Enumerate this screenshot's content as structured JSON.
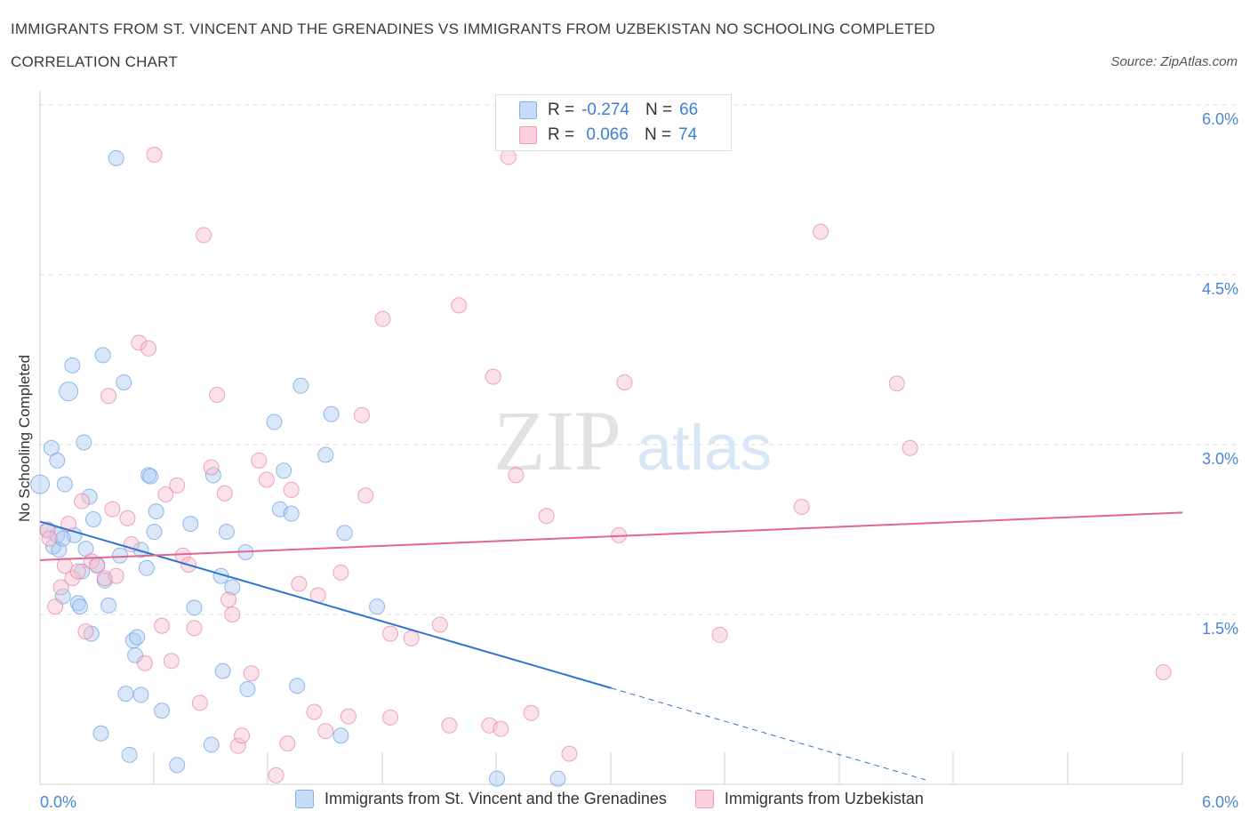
{
  "title": "IMMIGRANTS FROM ST. VINCENT AND THE GRENADINES VS IMMIGRANTS FROM UZBEKISTAN NO SCHOOLING COMPLETED",
  "subtitle": "CORRELATION CHART",
  "source": "Source: ZipAtlas.com",
  "watermark": {
    "zip": "ZIP",
    "atlas": "atlas"
  },
  "legend": {
    "rows": [
      {
        "r_label": "R =",
        "r_value": "-0.274",
        "n_label": "N =",
        "n_value": "66",
        "color": "#aac9f2"
      },
      {
        "r_label": "R =",
        "r_value": " 0.066",
        "n_label": "N =",
        "n_value": "74",
        "color": "#f7bfd0"
      }
    ]
  },
  "bottom_legend": [
    {
      "label": "Immigrants from St. Vincent and the Grenadines",
      "color": "#aac9f2"
    },
    {
      "label": "Immigrants from Uzbekistan",
      "color": "#f7bfd0"
    }
  ],
  "chart_data": {
    "type": "scatter",
    "title": "IMMIGRANTS FROM ST. VINCENT AND THE GRENADINES VS IMMIGRANTS FROM UZBEKISTAN NO SCHOOLING COMPLETED",
    "xlabel": "",
    "ylabel": "No Schooling Completed",
    "xlim": [
      0,
      6.0
    ],
    "ylim": [
      0,
      6.0
    ],
    "x_tick_labels": {
      "left": "0.0%",
      "right": "6.0%"
    },
    "y_ticks": [
      {
        "value": 1.5,
        "label": "1.5%"
      },
      {
        "value": 3.0,
        "label": "3.0%"
      },
      {
        "value": 4.5,
        "label": "4.5%"
      },
      {
        "value": 6.0,
        "label": "6.0%"
      }
    ],
    "grid": true,
    "series": [
      {
        "name": "Immigrants from St. Vincent and the Grenadines",
        "color": "#6fa3e6",
        "fill": "#aac9f2",
        "points": [
          [
            0.0,
            2.65
          ],
          [
            0.04,
            2.25
          ],
          [
            0.06,
            2.97
          ],
          [
            0.07,
            2.1
          ],
          [
            0.09,
            2.2
          ],
          [
            0.09,
            2.86
          ],
          [
            0.1,
            2.07
          ],
          [
            0.12,
            1.66
          ],
          [
            0.13,
            2.65
          ],
          [
            0.15,
            3.47
          ],
          [
            0.17,
            3.7
          ],
          [
            0.18,
            2.2
          ],
          [
            0.2,
            1.6
          ],
          [
            0.21,
            1.57
          ],
          [
            0.22,
            1.88
          ],
          [
            0.23,
            3.02
          ],
          [
            0.24,
            2.08
          ],
          [
            0.26,
            2.54
          ],
          [
            0.27,
            1.33
          ],
          [
            0.28,
            2.34
          ],
          [
            0.3,
            1.94
          ],
          [
            0.32,
            0.45
          ],
          [
            0.33,
            3.79
          ],
          [
            0.34,
            1.8
          ],
          [
            0.36,
            1.58
          ],
          [
            0.4,
            5.53
          ],
          [
            0.42,
            2.02
          ],
          [
            0.44,
            3.55
          ],
          [
            0.45,
            0.8
          ],
          [
            0.47,
            0.26
          ],
          [
            0.49,
            1.27
          ],
          [
            0.5,
            1.14
          ],
          [
            0.51,
            1.3
          ],
          [
            0.53,
            0.79
          ],
          [
            0.53,
            2.07
          ],
          [
            0.56,
            1.91
          ],
          [
            0.57,
            2.73
          ],
          [
            0.58,
            2.72
          ],
          [
            0.6,
            2.23
          ],
          [
            0.61,
            2.41
          ],
          [
            0.64,
            0.65
          ],
          [
            0.72,
            0.17
          ],
          [
            0.79,
            2.3
          ],
          [
            0.81,
            1.56
          ],
          [
            0.9,
            0.35
          ],
          [
            0.91,
            2.73
          ],
          [
            0.95,
            1.84
          ],
          [
            0.96,
            1.0
          ],
          [
            0.98,
            2.23
          ],
          [
            1.01,
            1.74
          ],
          [
            1.08,
            2.05
          ],
          [
            1.09,
            0.84
          ],
          [
            1.23,
            3.2
          ],
          [
            1.26,
            2.43
          ],
          [
            1.28,
            2.77
          ],
          [
            1.32,
            2.39
          ],
          [
            1.35,
            0.87
          ],
          [
            1.37,
            3.52
          ],
          [
            1.5,
            2.91
          ],
          [
            1.53,
            3.27
          ],
          [
            1.58,
            0.43
          ],
          [
            1.6,
            2.22
          ],
          [
            1.77,
            1.57
          ],
          [
            2.4,
            0.05
          ],
          [
            2.72,
            0.05
          ],
          [
            0.12,
            2.17
          ]
        ],
        "trend": {
          "x1": 0.0,
          "y1": 2.32,
          "x2": 3.0,
          "y2": 0.85,
          "x_dash_end": 4.65,
          "y_dash_end": 0.04
        }
      },
      {
        "name": "Immigrants from Uzbekistan",
        "color": "#e87fa2",
        "fill": "#f7bfd0",
        "points": [
          [
            0.04,
            2.24
          ],
          [
            0.05,
            2.17
          ],
          [
            0.08,
            1.57
          ],
          [
            0.11,
            1.74
          ],
          [
            0.13,
            1.93
          ],
          [
            0.15,
            2.3
          ],
          [
            0.17,
            1.82
          ],
          [
            0.2,
            1.88
          ],
          [
            0.22,
            2.5
          ],
          [
            0.24,
            1.35
          ],
          [
            0.27,
            1.97
          ],
          [
            0.3,
            1.93
          ],
          [
            0.34,
            1.82
          ],
          [
            0.36,
            3.43
          ],
          [
            0.38,
            2.43
          ],
          [
            0.4,
            1.84
          ],
          [
            0.46,
            2.35
          ],
          [
            0.48,
            2.12
          ],
          [
            0.52,
            3.9
          ],
          [
            0.55,
            1.07
          ],
          [
            0.57,
            3.85
          ],
          [
            0.6,
            5.56
          ],
          [
            0.64,
            1.4
          ],
          [
            0.66,
            2.56
          ],
          [
            0.69,
            1.09
          ],
          [
            0.72,
            2.64
          ],
          [
            0.75,
            2.02
          ],
          [
            0.78,
            1.94
          ],
          [
            0.81,
            1.38
          ],
          [
            0.84,
            0.72
          ],
          [
            0.86,
            4.85
          ],
          [
            0.9,
            2.8
          ],
          [
            0.93,
            3.44
          ],
          [
            0.97,
            2.57
          ],
          [
            0.99,
            1.63
          ],
          [
            1.01,
            1.5
          ],
          [
            1.04,
            0.34
          ],
          [
            1.06,
            0.43
          ],
          [
            1.11,
            0.98
          ],
          [
            1.15,
            2.86
          ],
          [
            1.19,
            2.69
          ],
          [
            1.24,
            0.08
          ],
          [
            1.3,
            0.36
          ],
          [
            1.32,
            2.6
          ],
          [
            1.36,
            1.77
          ],
          [
            1.44,
            0.64
          ],
          [
            1.46,
            1.67
          ],
          [
            1.5,
            0.47
          ],
          [
            1.58,
            1.87
          ],
          [
            1.62,
            0.6
          ],
          [
            1.69,
            3.26
          ],
          [
            1.71,
            2.55
          ],
          [
            1.8,
            4.11
          ],
          [
            1.84,
            1.33
          ],
          [
            1.84,
            0.59
          ],
          [
            1.95,
            1.29
          ],
          [
            2.1,
            1.41
          ],
          [
            2.15,
            0.52
          ],
          [
            2.2,
            4.23
          ],
          [
            2.36,
            0.52
          ],
          [
            2.38,
            3.6
          ],
          [
            2.42,
            0.49
          ],
          [
            2.46,
            5.54
          ],
          [
            2.5,
            2.73
          ],
          [
            2.58,
            0.63
          ],
          [
            2.66,
            2.37
          ],
          [
            2.78,
            0.27
          ],
          [
            3.04,
            2.2
          ],
          [
            3.07,
            3.55
          ],
          [
            3.57,
            1.32
          ],
          [
            4.0,
            2.45
          ],
          [
            4.1,
            4.88
          ],
          [
            4.5,
            3.54
          ],
          [
            4.57,
            2.97
          ],
          [
            5.9,
            0.99
          ]
        ],
        "trend": {
          "x1": 0.0,
          "y1": 1.98,
          "x2": 6.0,
          "y2": 2.4
        }
      }
    ]
  }
}
